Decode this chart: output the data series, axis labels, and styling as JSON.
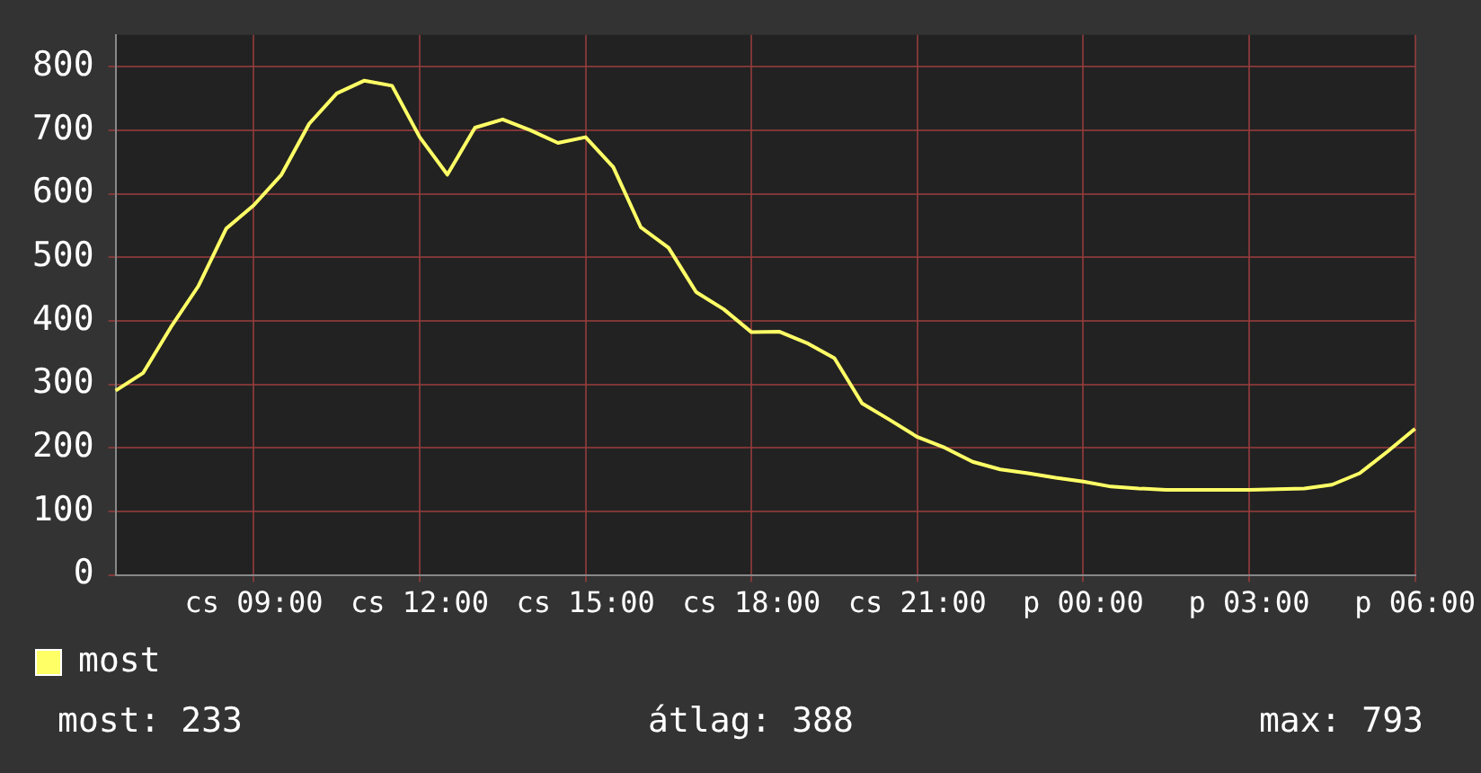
{
  "chart_data": {
    "type": "line",
    "categories": [
      null,
      null,
      null,
      null,
      null,
      "cs 09:00",
      null,
      null,
      null,
      null,
      null,
      "cs 12:00",
      null,
      null,
      null,
      null,
      null,
      "cs 15:00",
      null,
      null,
      null,
      null,
      null,
      "cs 18:00",
      null,
      null,
      null,
      null,
      null,
      "cs 21:00",
      null,
      null,
      null,
      null,
      null,
      "p 00:00",
      null,
      null,
      null,
      null,
      null,
      "p 03:00",
      null,
      null,
      null,
      null,
      null,
      "p 06:00"
    ],
    "series": [
      {
        "name": "most",
        "color": "#ffff66",
        "values": [
          290,
          318,
          390,
          455,
          545,
          582,
          630,
          710,
          758,
          778,
          770,
          689,
          630,
          704,
          717,
          700,
          680,
          689,
          642,
          547,
          515,
          445,
          418,
          382,
          383,
          365,
          341,
          270,
          244,
          217,
          200,
          178,
          166,
          160,
          153,
          147,
          139,
          136,
          134,
          134,
          134,
          134,
          135,
          136,
          142,
          160,
          194,
          230
        ]
      }
    ],
    "ylim": [
      0,
      850
    ],
    "yticks": [
      0,
      100,
      200,
      300,
      400,
      500,
      600,
      700,
      800
    ],
    "grid": true,
    "legend": "bottom left",
    "marker": "none",
    "line_style": "solid",
    "annotations": [
      "most: 233",
      "átlag: 388",
      "max: 793"
    ]
  }
}
